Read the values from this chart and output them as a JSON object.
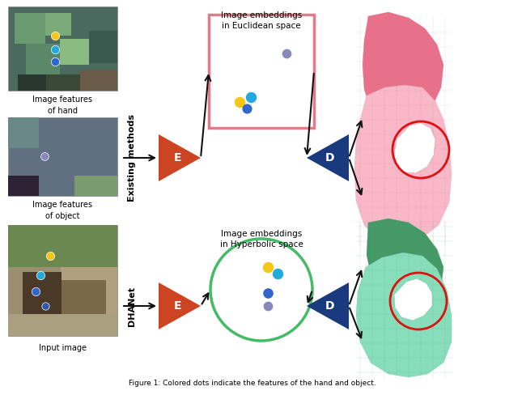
{
  "fig_width": 6.24,
  "fig_height": 4.88,
  "dpi": 100,
  "bg_color": "#ffffff",
  "caption": "Figure 1: Colored dots indicate the features of the hand and object.",
  "title_existing": "Image embeddings\nin Euclidean space",
  "title_hyperbolic": "Image embeddings\nin Hyperbolic space",
  "label_existing": "Existing methods",
  "label_dhanet": "DHANet",
  "label_hand": "Image features\nof hand",
  "label_object": "Image features\nof object",
  "label_input": "Input image",
  "encoder_color": "#cc4422",
  "decoder_color": "#1a3a80",
  "euclidean_box_color": "#e87888",
  "hyperbolic_circle_color": "#44bb66",
  "dot_yellow": "#f5c518",
  "dot_blue_bright": "#22aadd",
  "dot_blue_mid": "#3366cc",
  "dot_purple": "#8888bb",
  "arrow_color": "#111111",
  "red_circle_color": "#dd1111",
  "hand_mesh_dark": "#e8708a",
  "hand_mesh_light": "#f8b8c8",
  "obj_mesh_dark": "#449966",
  "obj_mesh_light": "#88ddbb"
}
